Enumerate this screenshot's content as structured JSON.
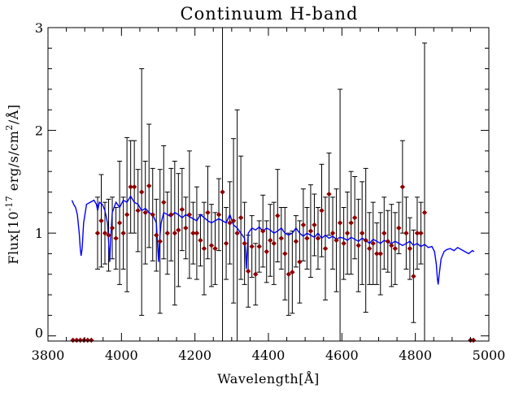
{
  "chart_data": {
    "type": "scatter",
    "title": "Continuum H-band",
    "xlabel": "Wavelength[Å]",
    "ylabel_parts": {
      "prefix": "Flux[10",
      "exponent": "-17",
      "middle": " erg/s/cm",
      "exponent2": "2",
      "suffix": "/Å]"
    },
    "xlim": [
      3800,
      5000
    ],
    "ylim": [
      -0.05,
      3.0
    ],
    "xticks": [
      3800,
      4000,
      4200,
      4400,
      4600,
      4800,
      5000
    ],
    "yticks": [
      0,
      1,
      2,
      3
    ],
    "grid": false,
    "colors": {
      "points": "#8b0000",
      "model": "#0000ff",
      "errorbars": "#000000"
    },
    "series": [
      {
        "kind": "model-line",
        "x": [
          3865,
          3870,
          3875,
          3880,
          3885,
          3888,
          3890,
          3893,
          3897,
          3905,
          3915,
          3925,
          3932,
          3935,
          3940,
          3948,
          3955,
          3962,
          3966,
          3968,
          3970,
          3975,
          3985,
          3995,
          4005,
          4015,
          4025,
          4035,
          4045,
          4055,
          4065,
          4075,
          4085,
          4095,
          4099,
          4101,
          4103,
          4108,
          4115,
          4125,
          4135,
          4145,
          4155,
          4165,
          4175,
          4185,
          4195,
          4205,
          4215,
          4225,
          4235,
          4245,
          4255,
          4265,
          4275,
          4285,
          4295,
          4305,
          4315,
          4325,
          4335,
          4338,
          4340,
          4342,
          4345,
          4355,
          4365,
          4375,
          4385,
          4395,
          4405,
          4415,
          4425,
          4435,
          4445,
          4455,
          4465,
          4475,
          4485,
          4495,
          4505,
          4515,
          4525,
          4535,
          4545,
          4555,
          4565,
          4575,
          4585,
          4595,
          4605,
          4615,
          4625,
          4635,
          4645,
          4655,
          4665,
          4675,
          4685,
          4695,
          4705,
          4715,
          4725,
          4735,
          4745,
          4755,
          4765,
          4775,
          4785,
          4795,
          4805,
          4815,
          4825,
          4835,
          4845,
          4852,
          4857,
          4860,
          4862,
          4865,
          4870,
          4878,
          4885,
          4895,
          4905,
          4915,
          4925,
          4935,
          4945,
          4955,
          4960
        ],
        "y": [
          1.32,
          1.28,
          1.25,
          1.18,
          1.0,
          0.85,
          0.78,
          0.85,
          1.1,
          1.28,
          1.3,
          1.32,
          1.28,
          1.22,
          1.3,
          1.28,
          1.22,
          1.1,
          0.85,
          0.72,
          0.9,
          1.2,
          1.3,
          1.25,
          1.32,
          1.3,
          1.36,
          1.3,
          1.28,
          1.22,
          1.24,
          1.2,
          1.18,
          1.1,
          0.85,
          0.72,
          0.9,
          1.1,
          1.2,
          1.18,
          1.16,
          1.2,
          1.18,
          1.15,
          1.18,
          1.16,
          1.14,
          1.12,
          1.18,
          1.15,
          1.12,
          1.1,
          1.12,
          1.14,
          1.12,
          1.1,
          1.18,
          1.08,
          1.05,
          1.0,
          0.95,
          0.8,
          0.65,
          0.8,
          1.0,
          1.05,
          1.03,
          1.06,
          1.02,
          1.05,
          1.03,
          1.0,
          1.02,
          1.05,
          1.0,
          0.98,
          1.0,
          1.05,
          1.0,
          0.97,
          1.0,
          0.98,
          0.96,
          1.0,
          0.95,
          0.98,
          0.95,
          0.97,
          0.94,
          0.96,
          0.95,
          0.93,
          0.96,
          0.94,
          0.92,
          0.95,
          0.93,
          0.9,
          0.94,
          0.92,
          0.9,
          0.93,
          0.91,
          0.9,
          0.92,
          0.9,
          0.88,
          0.9,
          0.92,
          0.88,
          0.9,
          0.87,
          0.89,
          0.86,
          0.87,
          0.82,
          0.7,
          0.55,
          0.5,
          0.6,
          0.75,
          0.82,
          0.84,
          0.85,
          0.83,
          0.86,
          0.84,
          0.82,
          0.8,
          0.83,
          0.82
        ]
      },
      {
        "kind": "points-with-errors",
        "points": [
          {
            "x": 3935,
            "y": 1.0,
            "err": 0.35
          },
          {
            "x": 3945,
            "y": 1.12,
            "err": 0.45
          },
          {
            "x": 3955,
            "y": 1.0,
            "err": 0.3
          },
          {
            "x": 3965,
            "y": 0.98,
            "err": 0.35
          },
          {
            "x": 3975,
            "y": 1.05,
            "err": 0.3
          },
          {
            "x": 3985,
            "y": 0.95,
            "err": 0.3
          },
          {
            "x": 3995,
            "y": 1.1,
            "err": 0.6
          },
          {
            "x": 4005,
            "y": 1.0,
            "err": 0.35
          },
          {
            "x": 4015,
            "y": 1.18,
            "err": 0.75
          },
          {
            "x": 4025,
            "y": 1.45,
            "err": 0.45
          },
          {
            "x": 4035,
            "y": 1.45,
            "err": 0.45
          },
          {
            "x": 4045,
            "y": 1.22,
            "err": 0.4
          },
          {
            "x": 4055,
            "y": 1.4,
            "err": 1.2
          },
          {
            "x": 4065,
            "y": 1.2,
            "err": 0.5
          },
          {
            "x": 4075,
            "y": 1.46,
            "err": 0.6
          },
          {
            "x": 4085,
            "y": 1.18,
            "err": 0.45
          },
          {
            "x": 4095,
            "y": 0.98,
            "err": 0.35
          },
          {
            "x": 4105,
            "y": 0.92,
            "err": 0.7
          },
          {
            "x": 4115,
            "y": 1.3,
            "err": 0.55
          },
          {
            "x": 4125,
            "y": 1.0,
            "err": 0.4
          },
          {
            "x": 4135,
            "y": 1.18,
            "err": 0.45
          },
          {
            "x": 4145,
            "y": 1.0,
            "err": 0.7
          },
          {
            "x": 4155,
            "y": 1.03,
            "err": 0.55
          },
          {
            "x": 4165,
            "y": 1.23,
            "err": 0.4
          },
          {
            "x": 4175,
            "y": 1.05,
            "err": 0.3
          },
          {
            "x": 4185,
            "y": 1.18,
            "err": 0.62
          },
          {
            "x": 4195,
            "y": 1.0,
            "err": 0.3
          },
          {
            "x": 4205,
            "y": 1.0,
            "err": 0.45
          },
          {
            "x": 4215,
            "y": 0.93,
            "err": 0.25
          },
          {
            "x": 4225,
            "y": 0.85,
            "err": 0.45
          },
          {
            "x": 4235,
            "y": 1.2,
            "err": 0.45
          },
          {
            "x": 4245,
            "y": 0.88,
            "err": 0.4
          },
          {
            "x": 4255,
            "y": 0.85,
            "err": 0.35
          },
          {
            "x": 4265,
            "y": 1.18,
            "err": 0.35
          },
          {
            "x": 4275,
            "y": 1.4,
            "err": 1.65
          },
          {
            "x": 4285,
            "y": 0.9,
            "err": 0.35
          },
          {
            "x": 4295,
            "y": 1.1,
            "err": 0.4
          },
          {
            "x": 4305,
            "y": 1.12,
            "err": 0.8
          },
          {
            "x": 4315,
            "y": 1.0,
            "err": 1.2
          },
          {
            "x": 4325,
            "y": 1.15,
            "err": 0.6
          },
          {
            "x": 4335,
            "y": 0.9,
            "err": 0.4
          },
          {
            "x": 4345,
            "y": 0.63,
            "err": 0.35
          },
          {
            "x": 4355,
            "y": 0.87,
            "err": 0.3
          },
          {
            "x": 4365,
            "y": 0.6,
            "err": 0.3
          },
          {
            "x": 4375,
            "y": 0.87,
            "err": 0.25
          },
          {
            "x": 4385,
            "y": 1.02,
            "err": 0.35
          },
          {
            "x": 4395,
            "y": 0.82,
            "err": 0.3
          },
          {
            "x": 4405,
            "y": 0.93,
            "err": 0.35
          },
          {
            "x": 4415,
            "y": 0.9,
            "err": 0.4
          },
          {
            "x": 4425,
            "y": 1.17,
            "err": 0.45
          },
          {
            "x": 4435,
            "y": 0.95,
            "err": 0.3
          },
          {
            "x": 4445,
            "y": 0.8,
            "err": 0.45
          },
          {
            "x": 4455,
            "y": 0.6,
            "err": 0.4
          },
          {
            "x": 4465,
            "y": 0.62,
            "err": 0.4
          },
          {
            "x": 4475,
            "y": 0.92,
            "err": 0.25
          },
          {
            "x": 4485,
            "y": 0.72,
            "err": 0.4
          },
          {
            "x": 4495,
            "y": 1.08,
            "err": 0.35
          },
          {
            "x": 4505,
            "y": 0.95,
            "err": 0.3
          },
          {
            "x": 4515,
            "y": 1.02,
            "err": 0.45
          },
          {
            "x": 4525,
            "y": 1.08,
            "err": 0.3
          },
          {
            "x": 4535,
            "y": 0.95,
            "err": 0.3
          },
          {
            "x": 4545,
            "y": 1.22,
            "err": 0.45
          },
          {
            "x": 4555,
            "y": 0.85,
            "err": 0.5
          },
          {
            "x": 4565,
            "y": 1.38,
            "err": 0.4
          },
          {
            "x": 4575,
            "y": 1.0,
            "err": 0.35
          },
          {
            "x": 4585,
            "y": 0.93,
            "err": 0.5
          },
          {
            "x": 4595,
            "y": 1.1,
            "err": 1.3
          },
          {
            "x": 4605,
            "y": 0.9,
            "err": 0.35
          },
          {
            "x": 4615,
            "y": 1.0,
            "err": 0.4
          },
          {
            "x": 4625,
            "y": 1.1,
            "err": 0.5
          },
          {
            "x": 4635,
            "y": 1.15,
            "err": 0.4
          },
          {
            "x": 4645,
            "y": 0.88,
            "err": 0.45
          },
          {
            "x": 4655,
            "y": 1.0,
            "err": 0.5
          },
          {
            "x": 4665,
            "y": 0.93,
            "err": 0.7
          },
          {
            "x": 4675,
            "y": 0.85,
            "err": 0.35
          },
          {
            "x": 4685,
            "y": 0.9,
            "err": 0.4
          },
          {
            "x": 4695,
            "y": 0.8,
            "err": 0.3
          },
          {
            "x": 4705,
            "y": 0.8,
            "err": 0.4
          },
          {
            "x": 4715,
            "y": 1.0,
            "err": 0.35
          },
          {
            "x": 4725,
            "y": 0.92,
            "err": 0.3
          },
          {
            "x": 4735,
            "y": 0.88,
            "err": 0.4
          },
          {
            "x": 4745,
            "y": 0.85,
            "err": 0.35
          },
          {
            "x": 4755,
            "y": 1.05,
            "err": 0.25
          },
          {
            "x": 4765,
            "y": 1.45,
            "err": 0.45
          },
          {
            "x": 4775,
            "y": 1.0,
            "err": 0.35
          },
          {
            "x": 4785,
            "y": 0.85,
            "err": 0.3
          },
          {
            "x": 4795,
            "y": 0.58,
            "err": 0.45
          },
          {
            "x": 4805,
            "y": 1.0,
            "err": 0.35
          },
          {
            "x": 4815,
            "y": 1.0,
            "err": 0.3
          },
          {
            "x": 4825,
            "y": 1.2,
            "err": 1.65
          }
        ],
        "baseline_points": [
          3868,
          3878,
          3888,
          3898,
          3908,
          3918,
          4950,
          4958
        ]
      }
    ]
  }
}
